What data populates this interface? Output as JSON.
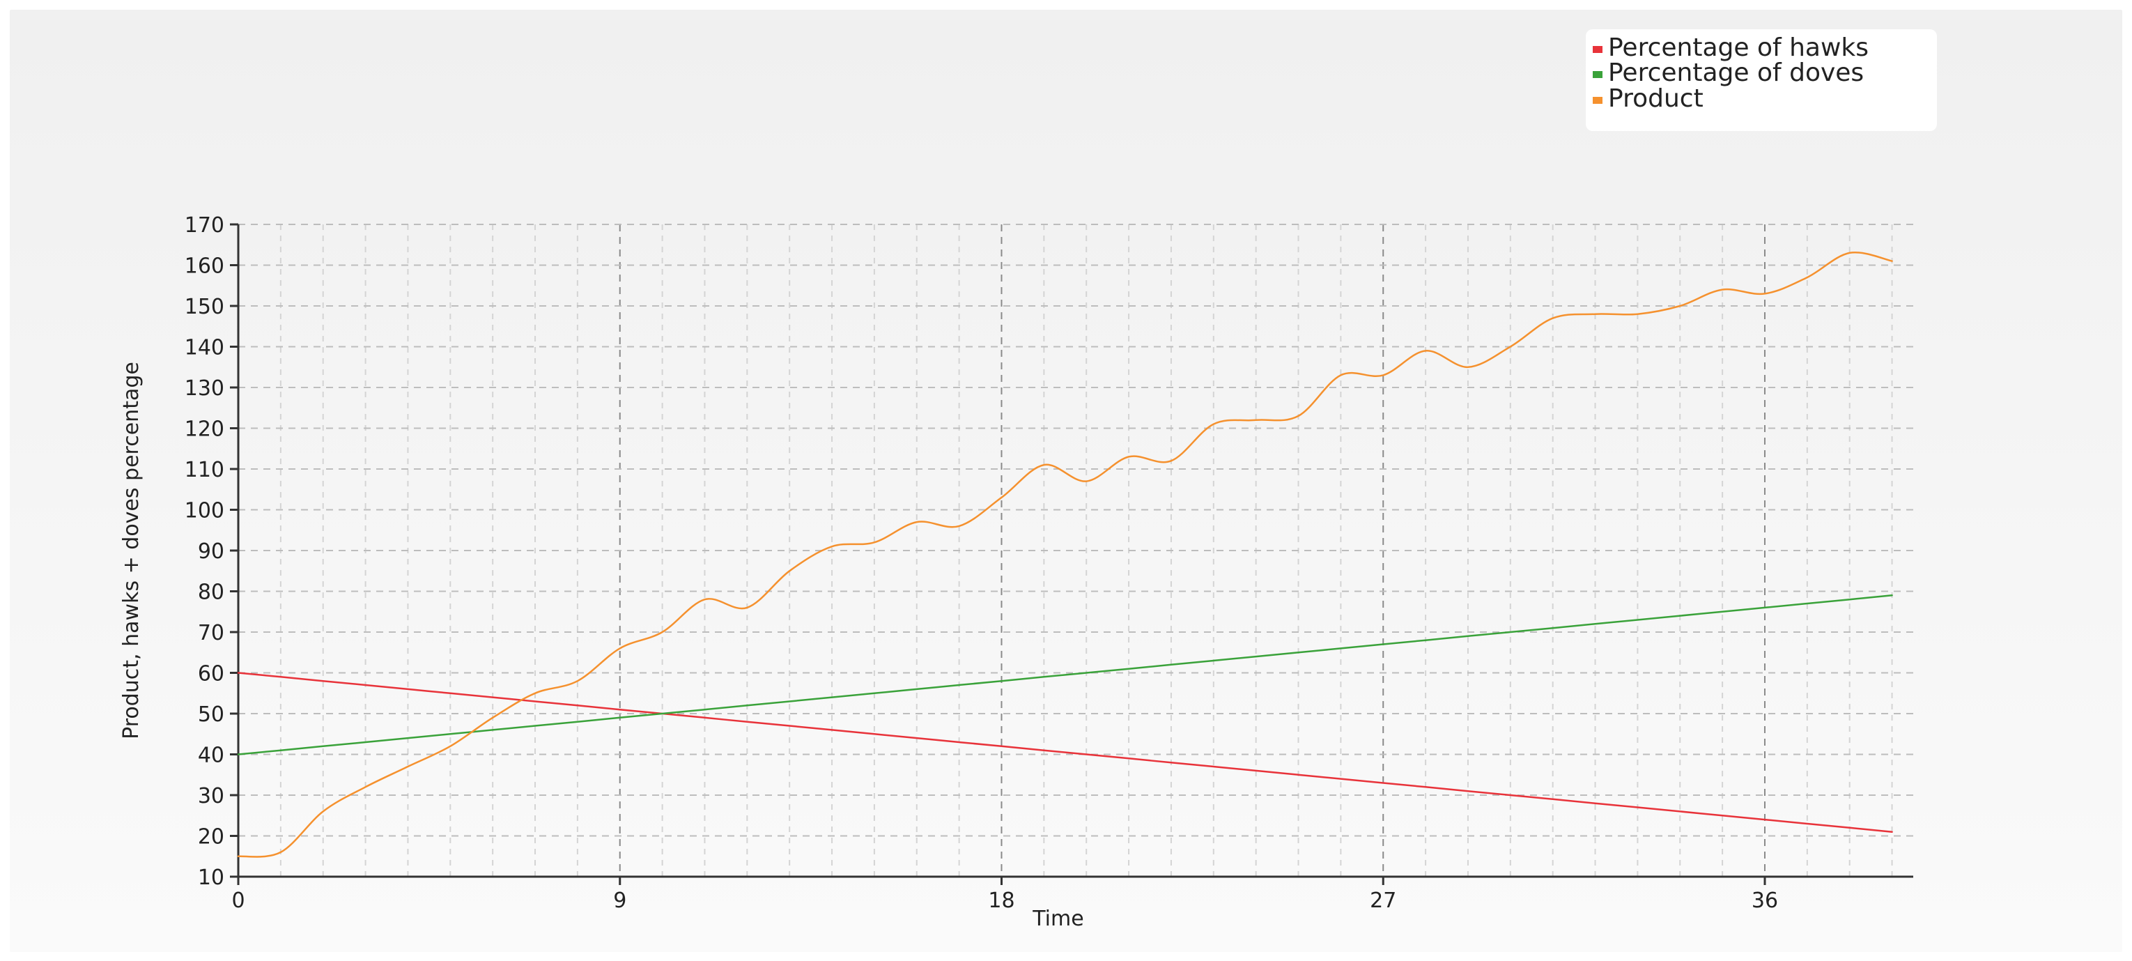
{
  "chart_data": {
    "type": "line",
    "xlabel": "Time",
    "ylabel": "Product, hawks + doves percentage",
    "xlim": [
      0,
      39.5
    ],
    "ylim": [
      10,
      170
    ],
    "x_ticks": [
      0,
      9,
      18,
      27,
      36
    ],
    "x_tick_labels": [
      "0",
      "9",
      "18",
      "27",
      "36"
    ],
    "y_ticks": [
      10,
      20,
      30,
      40,
      50,
      60,
      70,
      80,
      90,
      100,
      110,
      120,
      130,
      140,
      150,
      160,
      170
    ],
    "y_tick_labels": [
      "10",
      "20",
      "30",
      "40",
      "50",
      "60",
      "70",
      "80",
      "90",
      "100",
      "110",
      "120",
      "130",
      "140",
      "150",
      "160",
      "170"
    ],
    "grid": true,
    "legend_position": "top-right",
    "x": [
      0,
      1,
      2,
      3,
      4,
      5,
      6,
      7,
      8,
      9,
      10,
      11,
      12,
      13,
      14,
      15,
      16,
      17,
      18,
      19,
      20,
      21,
      22,
      23,
      24,
      25,
      26,
      27,
      28,
      29,
      30,
      31,
      32,
      33,
      34,
      35,
      36,
      37,
      38,
      39
    ],
    "series": [
      {
        "name": "Percentage of hawks",
        "color": "#e8333a",
        "values": [
          60,
          59,
          58,
          57,
          56,
          55,
          54,
          53,
          52,
          51,
          50,
          49,
          48,
          47,
          46,
          45,
          44,
          43,
          42,
          41,
          40,
          39,
          38,
          37,
          36,
          35,
          34,
          33,
          32,
          31,
          30,
          29,
          28,
          27,
          26,
          25,
          24,
          23,
          22,
          21
        ]
      },
      {
        "name": "Percentage of doves",
        "color": "#3aa23a",
        "values": [
          40,
          41,
          42,
          43,
          44,
          45,
          46,
          47,
          48,
          49,
          50,
          51,
          52,
          53,
          54,
          55,
          56,
          57,
          58,
          59,
          60,
          61,
          62,
          63,
          64,
          65,
          66,
          67,
          68,
          69,
          70,
          71,
          72,
          73,
          74,
          75,
          76,
          77,
          78,
          79
        ]
      },
      {
        "name": "Product",
        "color": "#f5912e",
        "values": [
          15,
          16,
          26,
          32,
          37,
          42,
          49,
          55,
          58,
          66,
          70,
          78,
          76,
          85,
          91,
          92,
          97,
          96,
          103,
          111,
          107,
          113,
          112,
          121,
          122,
          123,
          133,
          133,
          139,
          135,
          140,
          147,
          148,
          148,
          150,
          154,
          153,
          157,
          163,
          161
        ]
      }
    ]
  }
}
